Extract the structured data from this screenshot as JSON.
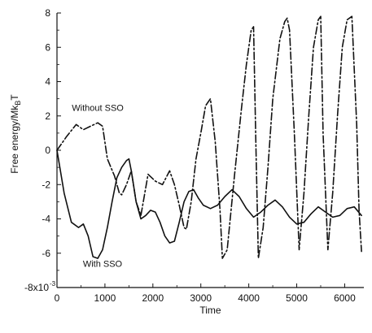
{
  "chart_data": {
    "type": "line",
    "title": "",
    "xlabel": "Time",
    "ylabel": "Free energy/Mk",
    "ylabel_sub": "B",
    "ylabel_suffix": "T",
    "xlim": [
      0,
      6400
    ],
    "ylim": [
      -8,
      8
    ],
    "x_ticks": [
      0,
      1000,
      2000,
      3000,
      4000,
      5000,
      6000
    ],
    "y_ticks": [
      8,
      6,
      4,
      2,
      0,
      -2,
      -4,
      -6
    ],
    "y_bottom_label": "-8x10",
    "y_bottom_label_exp": "-3",
    "grid": false,
    "legend": "none",
    "annotations": [
      {
        "text": "Without SSO",
        "x": 850,
        "y": 2.3
      },
      {
        "text": "With SSO",
        "x": 950,
        "y": -6.8
      }
    ],
    "series": [
      {
        "name": "Without SSO",
        "style": "dash-dot",
        "color": "#111111",
        "x": [
          0,
          200,
          400,
          550,
          700,
          850,
          950,
          1050,
          1200,
          1300,
          1350,
          1450,
          1550,
          1650,
          1750,
          1900,
          2050,
          2200,
          2350,
          2450,
          2550,
          2650,
          2700,
          2800,
          2900,
          3000,
          3100,
          3200,
          3300,
          3400,
          3450,
          3550,
          3700,
          3850,
          3950,
          4050,
          4100,
          4150,
          4200,
          4300,
          4400,
          4500,
          4650,
          4750,
          4800,
          4850,
          4950,
          5050,
          5150,
          5250,
          5350,
          5450,
          5500,
          5550,
          5650,
          5750,
          5850,
          5950,
          6050,
          6150,
          6250,
          6300,
          6350
        ],
        "y": [
          0,
          0.8,
          1.5,
          1.2,
          1.4,
          1.6,
          1.4,
          -0.5,
          -1.5,
          -2.5,
          -2.6,
          -2.0,
          -1.2,
          -3.0,
          -3.8,
          -1.4,
          -1.8,
          -2.0,
          -1.2,
          -2.0,
          -3.2,
          -4.5,
          -4.6,
          -3.0,
          -0.5,
          1.0,
          2.6,
          3.0,
          0.5,
          -3.5,
          -6.3,
          -5.8,
          -1.5,
          2.5,
          5.0,
          7.0,
          7.2,
          0.0,
          -6.3,
          -4.5,
          -1.0,
          3.0,
          6.5,
          7.5,
          7.7,
          7.0,
          1.0,
          -5.8,
          -2.5,
          2.0,
          6.0,
          7.6,
          7.8,
          1.0,
          -5.8,
          -2.5,
          2.0,
          6.0,
          7.6,
          7.8,
          1.5,
          -3.5,
          -5.9
        ]
      },
      {
        "name": "With SSO",
        "style": "solid",
        "color": "#111111",
        "x": [
          0,
          150,
          300,
          450,
          550,
          650,
          750,
          850,
          950,
          1050,
          1150,
          1250,
          1350,
          1450,
          1500,
          1550,
          1650,
          1750,
          1850,
          1950,
          2050,
          2150,
          2250,
          2350,
          2450,
          2550,
          2650,
          2750,
          2850,
          2950,
          3050,
          3200,
          3350,
          3500,
          3650,
          3800,
          3950,
          4100,
          4250,
          4400,
          4550,
          4700,
          4850,
          5000,
          5150,
          5300,
          5450,
          5600,
          5750,
          5900,
          6050,
          6200,
          6350
        ],
        "y": [
          0,
          -2.5,
          -4.2,
          -4.5,
          -4.3,
          -5.0,
          -6.2,
          -6.3,
          -5.8,
          -4.5,
          -3.0,
          -1.6,
          -1.0,
          -0.6,
          -0.5,
          -1.2,
          -3.0,
          -4.0,
          -3.8,
          -3.5,
          -3.6,
          -4.2,
          -5.0,
          -5.4,
          -5.3,
          -4.2,
          -3.0,
          -2.4,
          -2.3,
          -2.8,
          -3.2,
          -3.4,
          -3.2,
          -2.7,
          -2.3,
          -2.7,
          -3.4,
          -3.9,
          -3.6,
          -3.2,
          -2.9,
          -3.3,
          -3.9,
          -4.3,
          -4.2,
          -3.7,
          -3.3,
          -3.6,
          -3.9,
          -3.8,
          -3.4,
          -3.3,
          -3.8
        ]
      }
    ]
  }
}
